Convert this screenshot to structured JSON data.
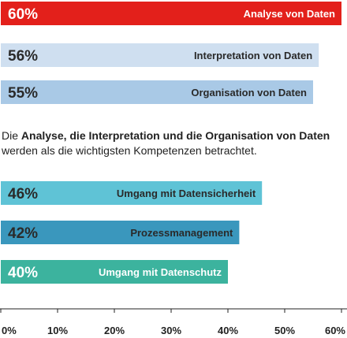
{
  "chart_data": {
    "type": "bar",
    "orientation": "horizontal",
    "categories": [
      "Analyse von Daten",
      "Interpretation von Daten",
      "Organisation von Daten",
      "Umgang mit Datensicherheit",
      "Prozessmanagement",
      "Umgang mit Datenschutz"
    ],
    "values": [
      60,
      56,
      55,
      46,
      42,
      40
    ],
    "value_labels": [
      "60%",
      "56%",
      "55%",
      "46%",
      "42%",
      "40%"
    ],
    "colors": [
      "#e3201b",
      "#cfdff0",
      "#a9c9e6",
      "#5fc3d6",
      "#3a97bd",
      "#3cb39e"
    ],
    "label_colors": [
      "#ffffff",
      "#2a2a2a",
      "#2a2a2a",
      "#2a2a2a",
      "#2a2a2a",
      "#ffffff"
    ],
    "xlim": [
      0,
      60
    ],
    "xticks": [
      "0%",
      "10%",
      "20%",
      "30%",
      "40%",
      "50%",
      "60%"
    ],
    "grid": false
  },
  "note": {
    "pre": "Die ",
    "bold": "Analyse, die Interpretation und die Organisation von Daten",
    "post": " werden als die wichtigsten Kompetenzen betrachtet."
  }
}
